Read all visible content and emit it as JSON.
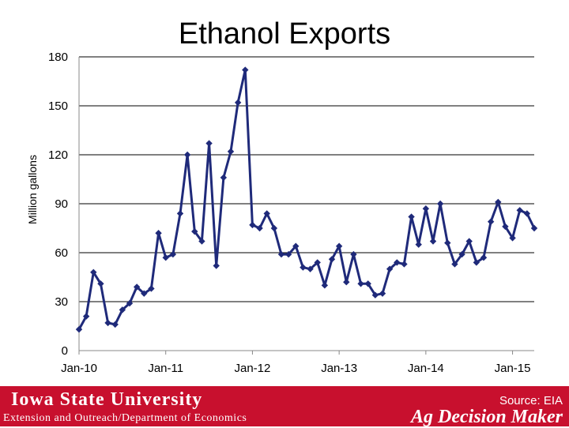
{
  "page": {
    "footer": {
      "institution": "Iowa State University",
      "department": "Extension and Outreach/Department of Economics",
      "source": "Source: EIA",
      "program": "Ag Decision Maker"
    }
  },
  "colors": {
    "series": "#1f2a7a",
    "footer": "#c8102e",
    "grid": "#000000"
  },
  "chart_data": {
    "type": "line",
    "title": "Ethanol Exports",
    "xlabel": "",
    "ylabel": "Million gallons",
    "ylim": [
      0,
      180
    ],
    "yticks": [
      0,
      30,
      60,
      90,
      120,
      150,
      180
    ],
    "xtick_labels": [
      "Jan-10",
      "Jan-11",
      "Jan-12",
      "Jan-13",
      "Jan-14",
      "Jan-15"
    ],
    "grid": true,
    "legend": "none",
    "series": [
      {
        "values": [
          13,
          21,
          48,
          41,
          17,
          16,
          25,
          29,
          39,
          35,
          38,
          72,
          57,
          59,
          84,
          120,
          73,
          67,
          127,
          52,
          106,
          122,
          152,
          172,
          77,
          75,
          84,
          75,
          59,
          59,
          64,
          51,
          50,
          54,
          40,
          56,
          64,
          42,
          59,
          41,
          41,
          34,
          35,
          50,
          54,
          53,
          82,
          65,
          87,
          67,
          90,
          66,
          53,
          59,
          67,
          54,
          57,
          79,
          91,
          76,
          69,
          86,
          84,
          75
        ]
      }
    ]
  }
}
